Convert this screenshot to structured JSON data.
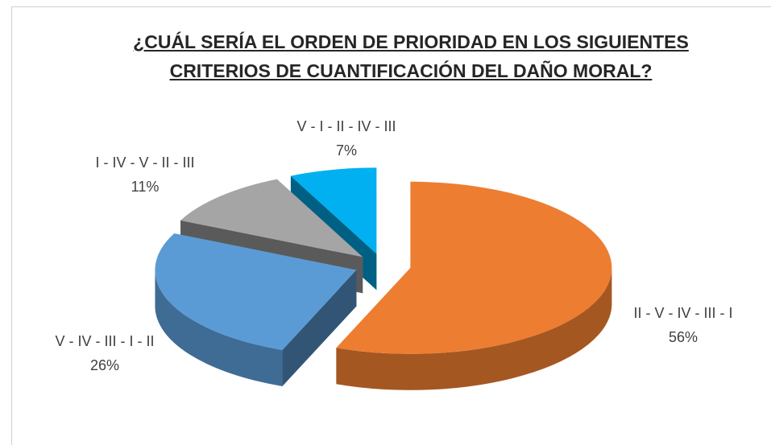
{
  "chart_data": {
    "type": "pie",
    "title": "¿CUÁL SERÍA EL ORDEN DE PRIORIDAD EN LOS SIGUIENTES CRITERIOS DE CUANTIFICACIÓN DEL DAÑO MORAL?",
    "categories": [
      "II - V - IV - III - I",
      "V - IV - III - I - II",
      "I - IV - V - II - III",
      "V - I - II - IV - III"
    ],
    "values": [
      56,
      26,
      11,
      7
    ],
    "value_labels": [
      "56%",
      "26%",
      "11%",
      "7%"
    ],
    "colors": [
      "#ED7D31",
      "#5B9BD5",
      "#A5A5A5",
      "#00B0F0"
    ]
  }
}
